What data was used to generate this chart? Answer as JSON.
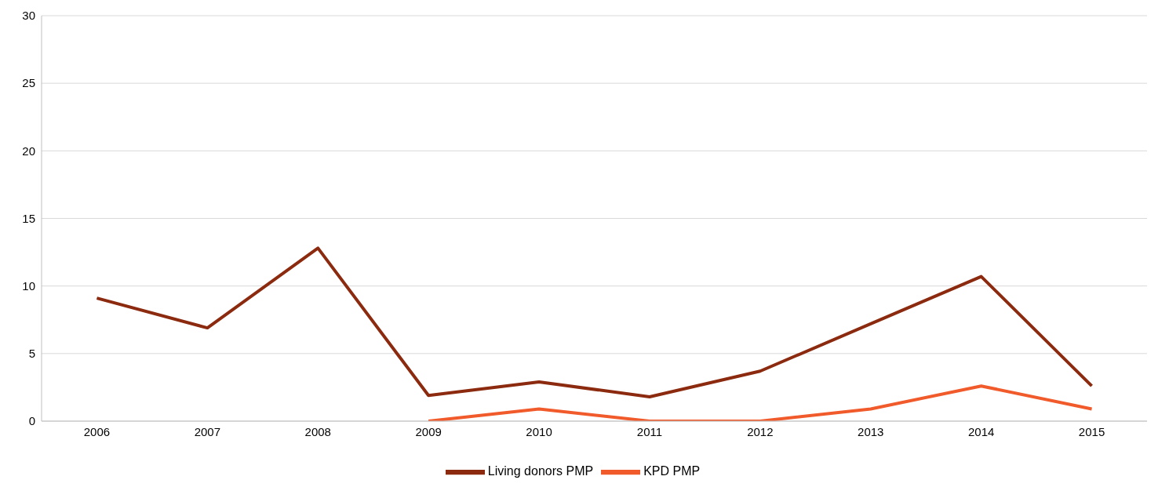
{
  "chart_data": {
    "type": "line",
    "categories": [
      "2006",
      "2007",
      "2008",
      "2009",
      "2010",
      "2011",
      "2012",
      "2013",
      "2014",
      "2015"
    ],
    "series": [
      {
        "name": "Living donors PMP",
        "color": "#8b2a0e",
        "values": [
          9.1,
          6.9,
          12.8,
          1.9,
          2.9,
          1.8,
          3.7,
          7.2,
          10.7,
          2.6
        ]
      },
      {
        "name": "KPD PMP",
        "color": "#f15a2b",
        "values": [
          null,
          null,
          null,
          0,
          0.9,
          0,
          0,
          0.9,
          2.6,
          0.9
        ]
      }
    ],
    "ylim": [
      0,
      30
    ],
    "yticks": [
      0,
      5,
      10,
      15,
      20,
      25,
      30
    ],
    "grid": "y",
    "legend": "bottom",
    "marker": "none",
    "line_style": "solid"
  }
}
